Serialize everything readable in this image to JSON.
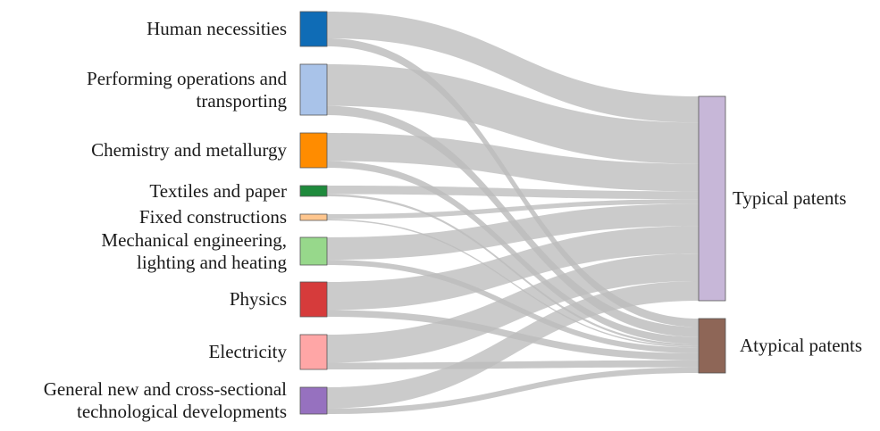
{
  "chart_data": {
    "type": "sankey",
    "sources": [
      {
        "id": "human",
        "label": "Human necessities",
        "color": "#0f6cb6",
        "typical": 0.4,
        "atypical": 0.12
      },
      {
        "id": "performing",
        "label": "Performing operations and transporting",
        "label_lines": [
          "Performing operations and",
          "transporting"
        ],
        "color": "#a9c3e9",
        "typical": 0.63,
        "atypical": 0.14
      },
      {
        "id": "chemistry",
        "label": "Chemistry and metallurgy",
        "color": "#ff8c00",
        "typical": 0.42,
        "atypical": 0.1
      },
      {
        "id": "textiles",
        "label": "Textiles and paper",
        "color": "#1e8a3c",
        "typical": 0.12,
        "atypical": 0.03
      },
      {
        "id": "fixed",
        "label": "Fixed constructions",
        "color": "#ffc68e",
        "typical": 0.07,
        "atypical": 0.02
      },
      {
        "id": "mechanical",
        "label": "Mechanical engineering, lighting and heating",
        "label_lines": [
          "Mechanical engineering,",
          "lighting and heating"
        ],
        "color": "#97d88b",
        "typical": 0.34,
        "atypical": 0.08
      },
      {
        "id": "physics",
        "label": "Physics",
        "color": "#d63b3b",
        "typical": 0.42,
        "atypical": 0.1
      },
      {
        "id": "electricity",
        "label": "Electricity",
        "color": "#ffa6a6",
        "typical": 0.42,
        "atypical": 0.1
      },
      {
        "id": "general",
        "label": "General new and cross-sectional technological developments",
        "label_lines": [
          "General new and cross-sectional",
          "technological developments"
        ],
        "color": "#9671bf",
        "typical": 0.3,
        "atypical": 0.08
      }
    ],
    "targets": [
      {
        "id": "typical",
        "label": "Typical patents",
        "color": "#c7b7d8"
      },
      {
        "id": "atypical",
        "label": "Atypical patents",
        "color": "#8e6657"
      }
    ],
    "link_color": "#bdbdbd"
  }
}
